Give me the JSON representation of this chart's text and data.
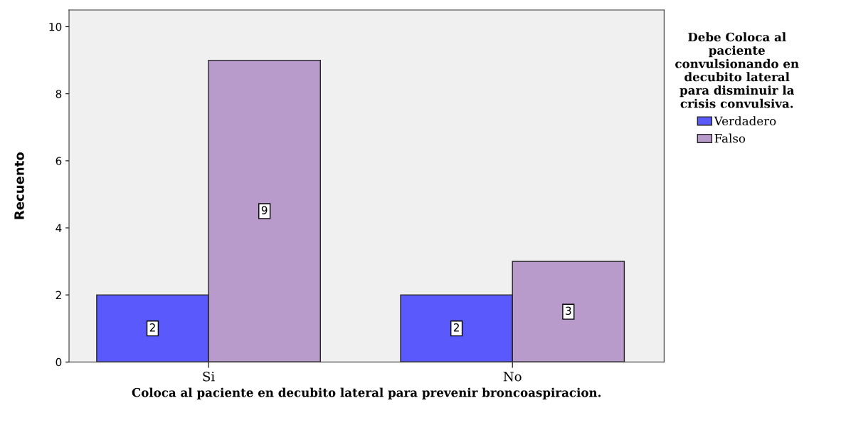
{
  "chart_data": {
    "type": "bar",
    "xlabel": "Coloca al paciente en decubito lateral para prevenir broncoaspiracion.",
    "ylabel": "Recuento",
    "legend_title": "Debe Coloca al\npaciente\nconvulsionando en\ndecubito lateral\npara disminuir la\ncrisis convulsiva.",
    "categories": [
      "Si",
      "No"
    ],
    "series": [
      {
        "name": "Verdadero",
        "color": "#5a5afc",
        "values": [
          2,
          2
        ]
      },
      {
        "name": "Falso",
        "color": "#b89bcb",
        "values": [
          9,
          3
        ]
      }
    ],
    "ylim": [
      0,
      10.5
    ],
    "yticks": [
      0,
      2,
      4,
      6,
      8,
      10
    ],
    "grid": false,
    "legend": "right",
    "data_labels": true
  }
}
